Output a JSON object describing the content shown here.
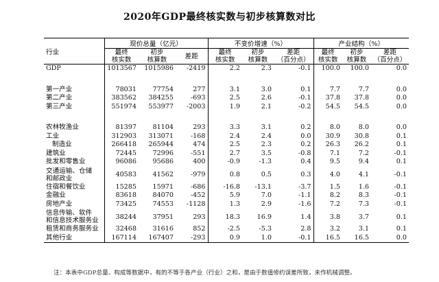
{
  "title": "2020年GDP最终核实数与初步核算数对比",
  "headers": {
    "industry": "行业",
    "group1": "现价总量（亿元）",
    "group2": "不变价增速（%）",
    "group3": "产业结构（%）",
    "final": [
      "最终",
      "核实数"
    ],
    "prelim": [
      "初步",
      "核算数"
    ],
    "diff1": "差距",
    "diff2": [
      "差距",
      "（百分点）"
    ]
  },
  "rows": [
    {
      "label": "GDP",
      "values": [
        "1013567",
        "1015986",
        "-2419",
        "2.2",
        "2.3",
        "-0.1",
        "100.0",
        "100.0",
        "0.0"
      ]
    },
    {
      "gap": true
    },
    {
      "label": "第一产业",
      "values": [
        "78031",
        "77754",
        "277",
        "3.1",
        "3.0",
        "0.1",
        "7.7",
        "7.7",
        "0.0"
      ]
    },
    {
      "label": "第二产业",
      "values": [
        "383562",
        "384255",
        "-693",
        "2.5",
        "2.6",
        "-0.1",
        "37.8",
        "37.8",
        "0.0"
      ]
    },
    {
      "label": "第三产业",
      "values": [
        "551974",
        "553977",
        "-2003",
        "1.9",
        "2.1",
        "-0.2",
        "54.5",
        "54.5",
        "0.0"
      ]
    },
    {
      "gap": true
    },
    {
      "label": "农林牧渔业",
      "values": [
        "81397",
        "81104",
        "293",
        "3.3",
        "3.1",
        "0.2",
        "8.0",
        "8.0",
        "0.0"
      ]
    },
    {
      "label": "工业",
      "values": [
        "312903",
        "313071",
        "-168",
        "2.4",
        "2.4",
        "0.0",
        "30.9",
        "30.8",
        "0.1"
      ]
    },
    {
      "label": "制造业",
      "indent": true,
      "values": [
        "266418",
        "265944",
        "474",
        "2.5",
        "2.3",
        "0.2",
        "26.3",
        "26.2",
        "0.1"
      ]
    },
    {
      "label": "建筑业",
      "values": [
        "72445",
        "72996",
        "-551",
        "2.7",
        "3.5",
        "-0.8",
        "7.1",
        "7.2",
        "-0.1"
      ]
    },
    {
      "label": "批发和零售业",
      "values": [
        "96086",
        "95686",
        "400",
        "-0.9",
        "-1.3",
        "0.4",
        "9.5",
        "9.4",
        "0.1"
      ]
    },
    {
      "label": "交通运输、仓储",
      "label2": "和邮政业",
      "values": [
        "40583",
        "41562",
        "-979",
        "0.8",
        "0.5",
        "0.3",
        "4.0",
        "4.1",
        "-0.1"
      ]
    },
    {
      "label": "住宿和餐饮业",
      "values": [
        "15285",
        "15971",
        "-686",
        "-16.8",
        "-13.1",
        "-3.7",
        "1.5",
        "1.6",
        "-0.1"
      ]
    },
    {
      "label": "金融业",
      "values": [
        "83618",
        "84070",
        "-452",
        "5.9",
        "7.0",
        "-1.1",
        "8.2",
        "8.3",
        "-0.1"
      ]
    },
    {
      "label": "房地产业",
      "values": [
        "73425",
        "74553",
        "-1128",
        "1.3",
        "2.9",
        "-1.6",
        "7.2",
        "7.3",
        "-0.1"
      ]
    },
    {
      "label": "信息传输、软件",
      "label2": "和信息技术服务业",
      "values": [
        "38244",
        "37951",
        "293",
        "18.3",
        "16.9",
        "1.4",
        "3.8",
        "3.7",
        "0.1"
      ]
    },
    {
      "label": "租赁和商务服务业",
      "values": [
        "32468",
        "31616",
        "852",
        "-2.5",
        "-5.3",
        "2.8",
        "3.2",
        "3.1",
        "0.1"
      ]
    },
    {
      "label": "其他行业",
      "values": [
        "167114",
        "167407",
        "-293",
        "0.9",
        "1.0",
        "-0.1",
        "16.5",
        "16.5",
        "0.0"
      ]
    }
  ],
  "note": "注：本表中GDP总量、构成等数据中，有的不等于各产业（行业）之和，是由于数值修约误差所致，未作机械调整。"
}
